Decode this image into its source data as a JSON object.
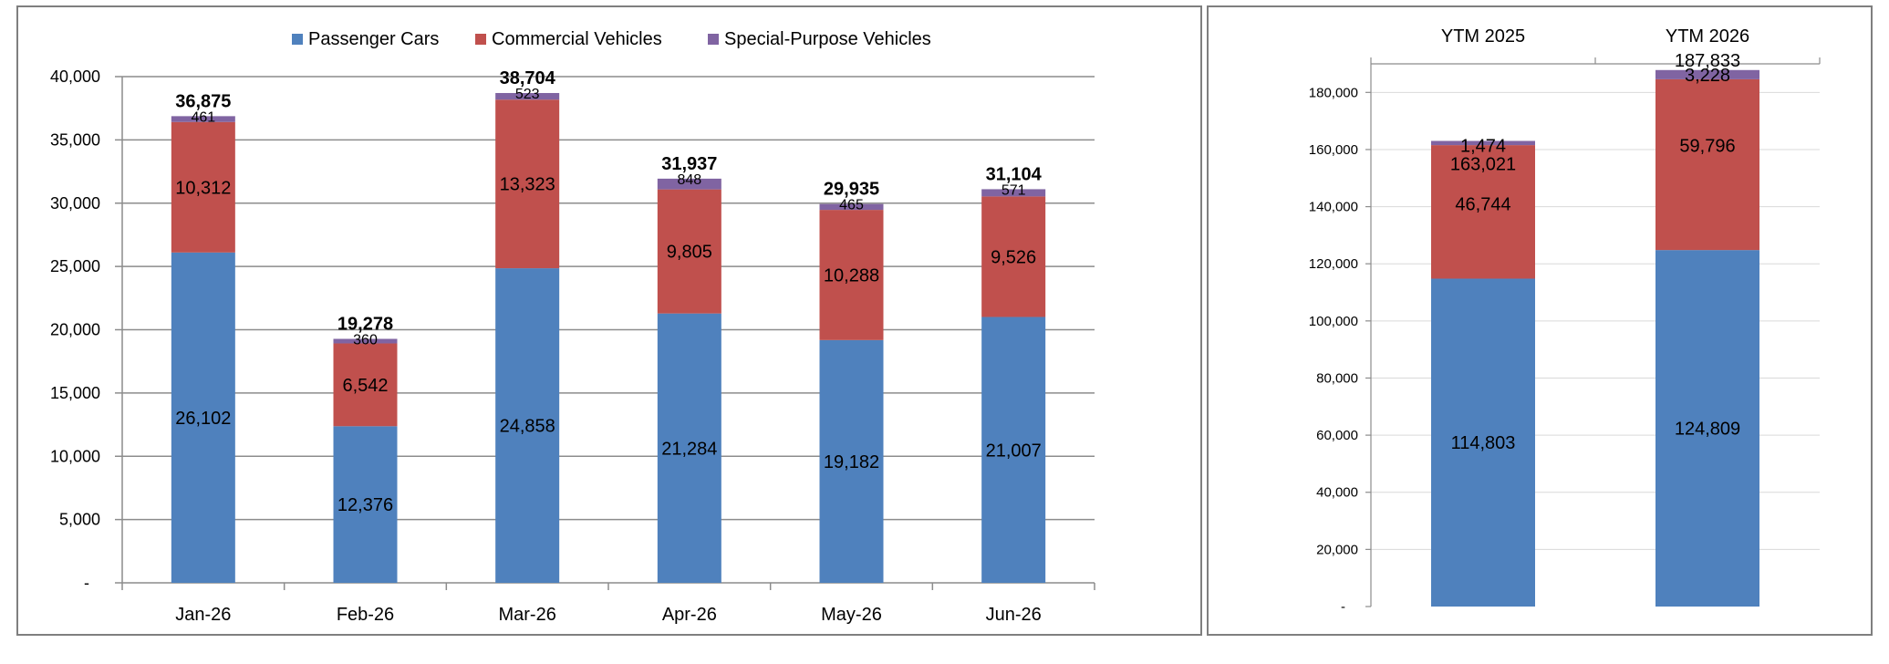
{
  "colors": {
    "passenger": "#4F81BD",
    "commercial": "#C0504D",
    "special": "#8064A2",
    "gridline": "#8c8c8c",
    "axis": "#8c8c8c"
  },
  "legend": {
    "items": [
      "Passenger Cars",
      "Commercial Vehicles",
      "Special-Purpose Vehicles"
    ]
  },
  "chart_data": [
    {
      "type": "bar",
      "stacked": true,
      "categories": [
        "Jan-26",
        "Feb-26",
        "Mar-26",
        "Apr-26",
        "May-26",
        "Jun-26"
      ],
      "series": [
        {
          "name": "Passenger Cars",
          "values": [
            26102,
            12376,
            24858,
            21284,
            19182,
            21007
          ]
        },
        {
          "name": "Commercial Vehicles",
          "values": [
            10312,
            6542,
            13323,
            9805,
            10288,
            9526
          ]
        },
        {
          "name": "Special-Purpose Vehicles",
          "values": [
            461,
            360,
            523,
            848,
            465,
            571
          ]
        }
      ],
      "segment_labels": [
        [
          "26,102",
          "12,376",
          "24,858",
          "21,284",
          "19,182",
          "21,007"
        ],
        [
          "10,312",
          "6,542",
          "13,323",
          "9,805",
          "10,288",
          "9,526"
        ],
        [
          "461",
          "360",
          "523",
          "848",
          "465",
          "571"
        ]
      ],
      "totals": [
        "36,875",
        "19,278",
        "38,704",
        "31,937",
        "29,935",
        "31,104"
      ],
      "ylim": [
        0,
        40000
      ],
      "yticks": [
        0,
        5000,
        10000,
        15000,
        20000,
        25000,
        30000,
        35000,
        40000
      ],
      "ytick_labels": [
        "-",
        "5,000",
        "10,000",
        "15,000",
        "20,000",
        "25,000",
        "30,000",
        "35,000",
        "40,000"
      ],
      "grid": true,
      "legend_position": "top"
    },
    {
      "type": "bar",
      "stacked": true,
      "categories": [
        "YTM 2025",
        "YTM 2026"
      ],
      "categories_position": "top",
      "series": [
        {
          "name": "Passenger Cars",
          "values": [
            114803,
            124809
          ]
        },
        {
          "name": "Commercial Vehicles",
          "values": [
            46744,
            59796
          ]
        },
        {
          "name": "Special-Purpose Vehicles",
          "values": [
            1474,
            3228
          ]
        }
      ],
      "segment_labels": [
        [
          "114,803",
          "124,809"
        ],
        [
          "46,744",
          "59,796"
        ],
        [
          "1,474",
          "3,228"
        ]
      ],
      "totals": [
        "163,021",
        "187,833"
      ],
      "ylim": [
        0,
        190000
      ],
      "yticks": [
        0,
        20000,
        40000,
        60000,
        80000,
        100000,
        120000,
        140000,
        160000,
        180000
      ],
      "ytick_labels": [
        "-",
        "20,000",
        "40,000",
        "60,000",
        "80,000",
        "100,000",
        "120,000",
        "140,000",
        "160,000",
        "180,000"
      ],
      "grid": true
    }
  ]
}
